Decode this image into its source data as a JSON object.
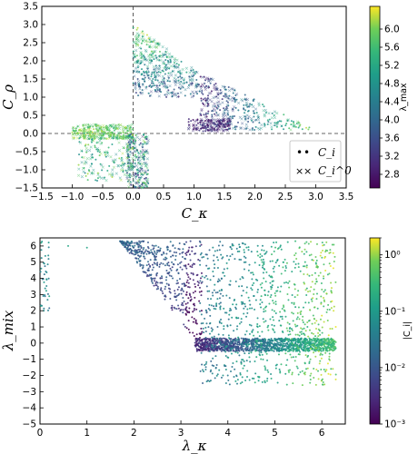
{
  "chart_data": [
    {
      "type": "scatter",
      "xlabel": "C_κ",
      "ylabel": "C_ρ",
      "xlim": [
        -1.5,
        3.5
      ],
      "ylim": [
        -1.5,
        3.5
      ],
      "xticks": [
        "−1.5",
        "−1.0",
        "−0.5",
        "0.0",
        "0.5",
        "1.0",
        "1.5",
        "2.0",
        "2.5",
        "3.0",
        "3.5"
      ],
      "yticks": [
        "−1.5",
        "−1.0",
        "−0.5",
        "0.0",
        "0.5",
        "1.0",
        "1.5",
        "2.0",
        "2.5",
        "3.0",
        "3.5"
      ],
      "reference_lines": {
        "x": 0,
        "y": 0,
        "style": "dashed"
      },
      "legend": {
        "placement": "lower-right",
        "entries": [
          "C_i",
          "C_i^0"
        ]
      },
      "legend_symbols": [
        "•",
        "×"
      ],
      "colorbar": {
        "label": "λ_max",
        "range": [
          2.5,
          6.5
        ],
        "scale": "linear",
        "ticks": [
          "2.8",
          "3.2",
          "3.6",
          "4.0",
          "4.4",
          "4.8",
          "5.2",
          "5.6",
          "6.0"
        ]
      },
      "series": [
        {
          "name": "C_i",
          "marker": "dot",
          "point_count": 1300,
          "clusters": [
            {
              "x": [
                -1.0,
                0.0
              ],
              "y": [
                -1.4,
                0.3
              ]
            },
            {
              "x": [
                -0.1,
                0.25
              ],
              "y": [
                -1.5,
                0.0
              ]
            },
            {
              "x": [
                0.0,
                1.1
              ],
              "y": [
                1.0,
                3.0
              ]
            },
            {
              "x": [
                1.1,
                3.0
              ],
              "y": [
                0.1,
                1.7
              ]
            }
          ]
        },
        {
          "name": "C_i^0",
          "marker": "x",
          "point_count": 1300,
          "clusters": [
            {
              "x": [
                -1.0,
                0.0
              ],
              "y": [
                -1.4,
                0.3
              ]
            },
            {
              "x": [
                0.0,
                1.1
              ],
              "y": [
                1.0,
                3.0
              ]
            },
            {
              "x": [
                1.1,
                3.0
              ],
              "y": [
                0.1,
                1.7
              ]
            }
          ]
        }
      ]
    },
    {
      "type": "scatter",
      "xlabel": "λ_κ",
      "ylabel": "λ_mix",
      "xlim": [
        0,
        6.5
      ],
      "ylim": [
        -5,
        6.5
      ],
      "xticks": [
        "0",
        "1",
        "2",
        "3",
        "4",
        "5",
        "6"
      ],
      "yticks": [
        "−5",
        "−4",
        "−3",
        "−2",
        "−1",
        "0",
        "1",
        "2",
        "3",
        "4",
        "5",
        "6"
      ],
      "colorbar": {
        "label": "|C_i|",
        "range": [
          0.001,
          2.0
        ],
        "scale": "log",
        "ticks": [
          "10⁰",
          "10⁻¹",
          "10⁻²",
          "10⁻³"
        ]
      },
      "series": [
        {
          "marker": "dot",
          "point_count": 2500,
          "clusters": [
            {
              "x": [
                0.0,
                0.2
              ],
              "y": [
                2.0,
                6.3
              ]
            },
            {
              "x": [
                1.7,
                3.4
              ],
              "y": [
                0.0,
                6.3
              ]
            },
            {
              "x": [
                3.3,
                6.3
              ],
              "y": [
                -0.5,
                0.3
              ]
            },
            {
              "x": [
                3.4,
                6.3
              ],
              "y": [
                -2.6,
                6.3
              ]
            }
          ]
        }
      ]
    }
  ]
}
